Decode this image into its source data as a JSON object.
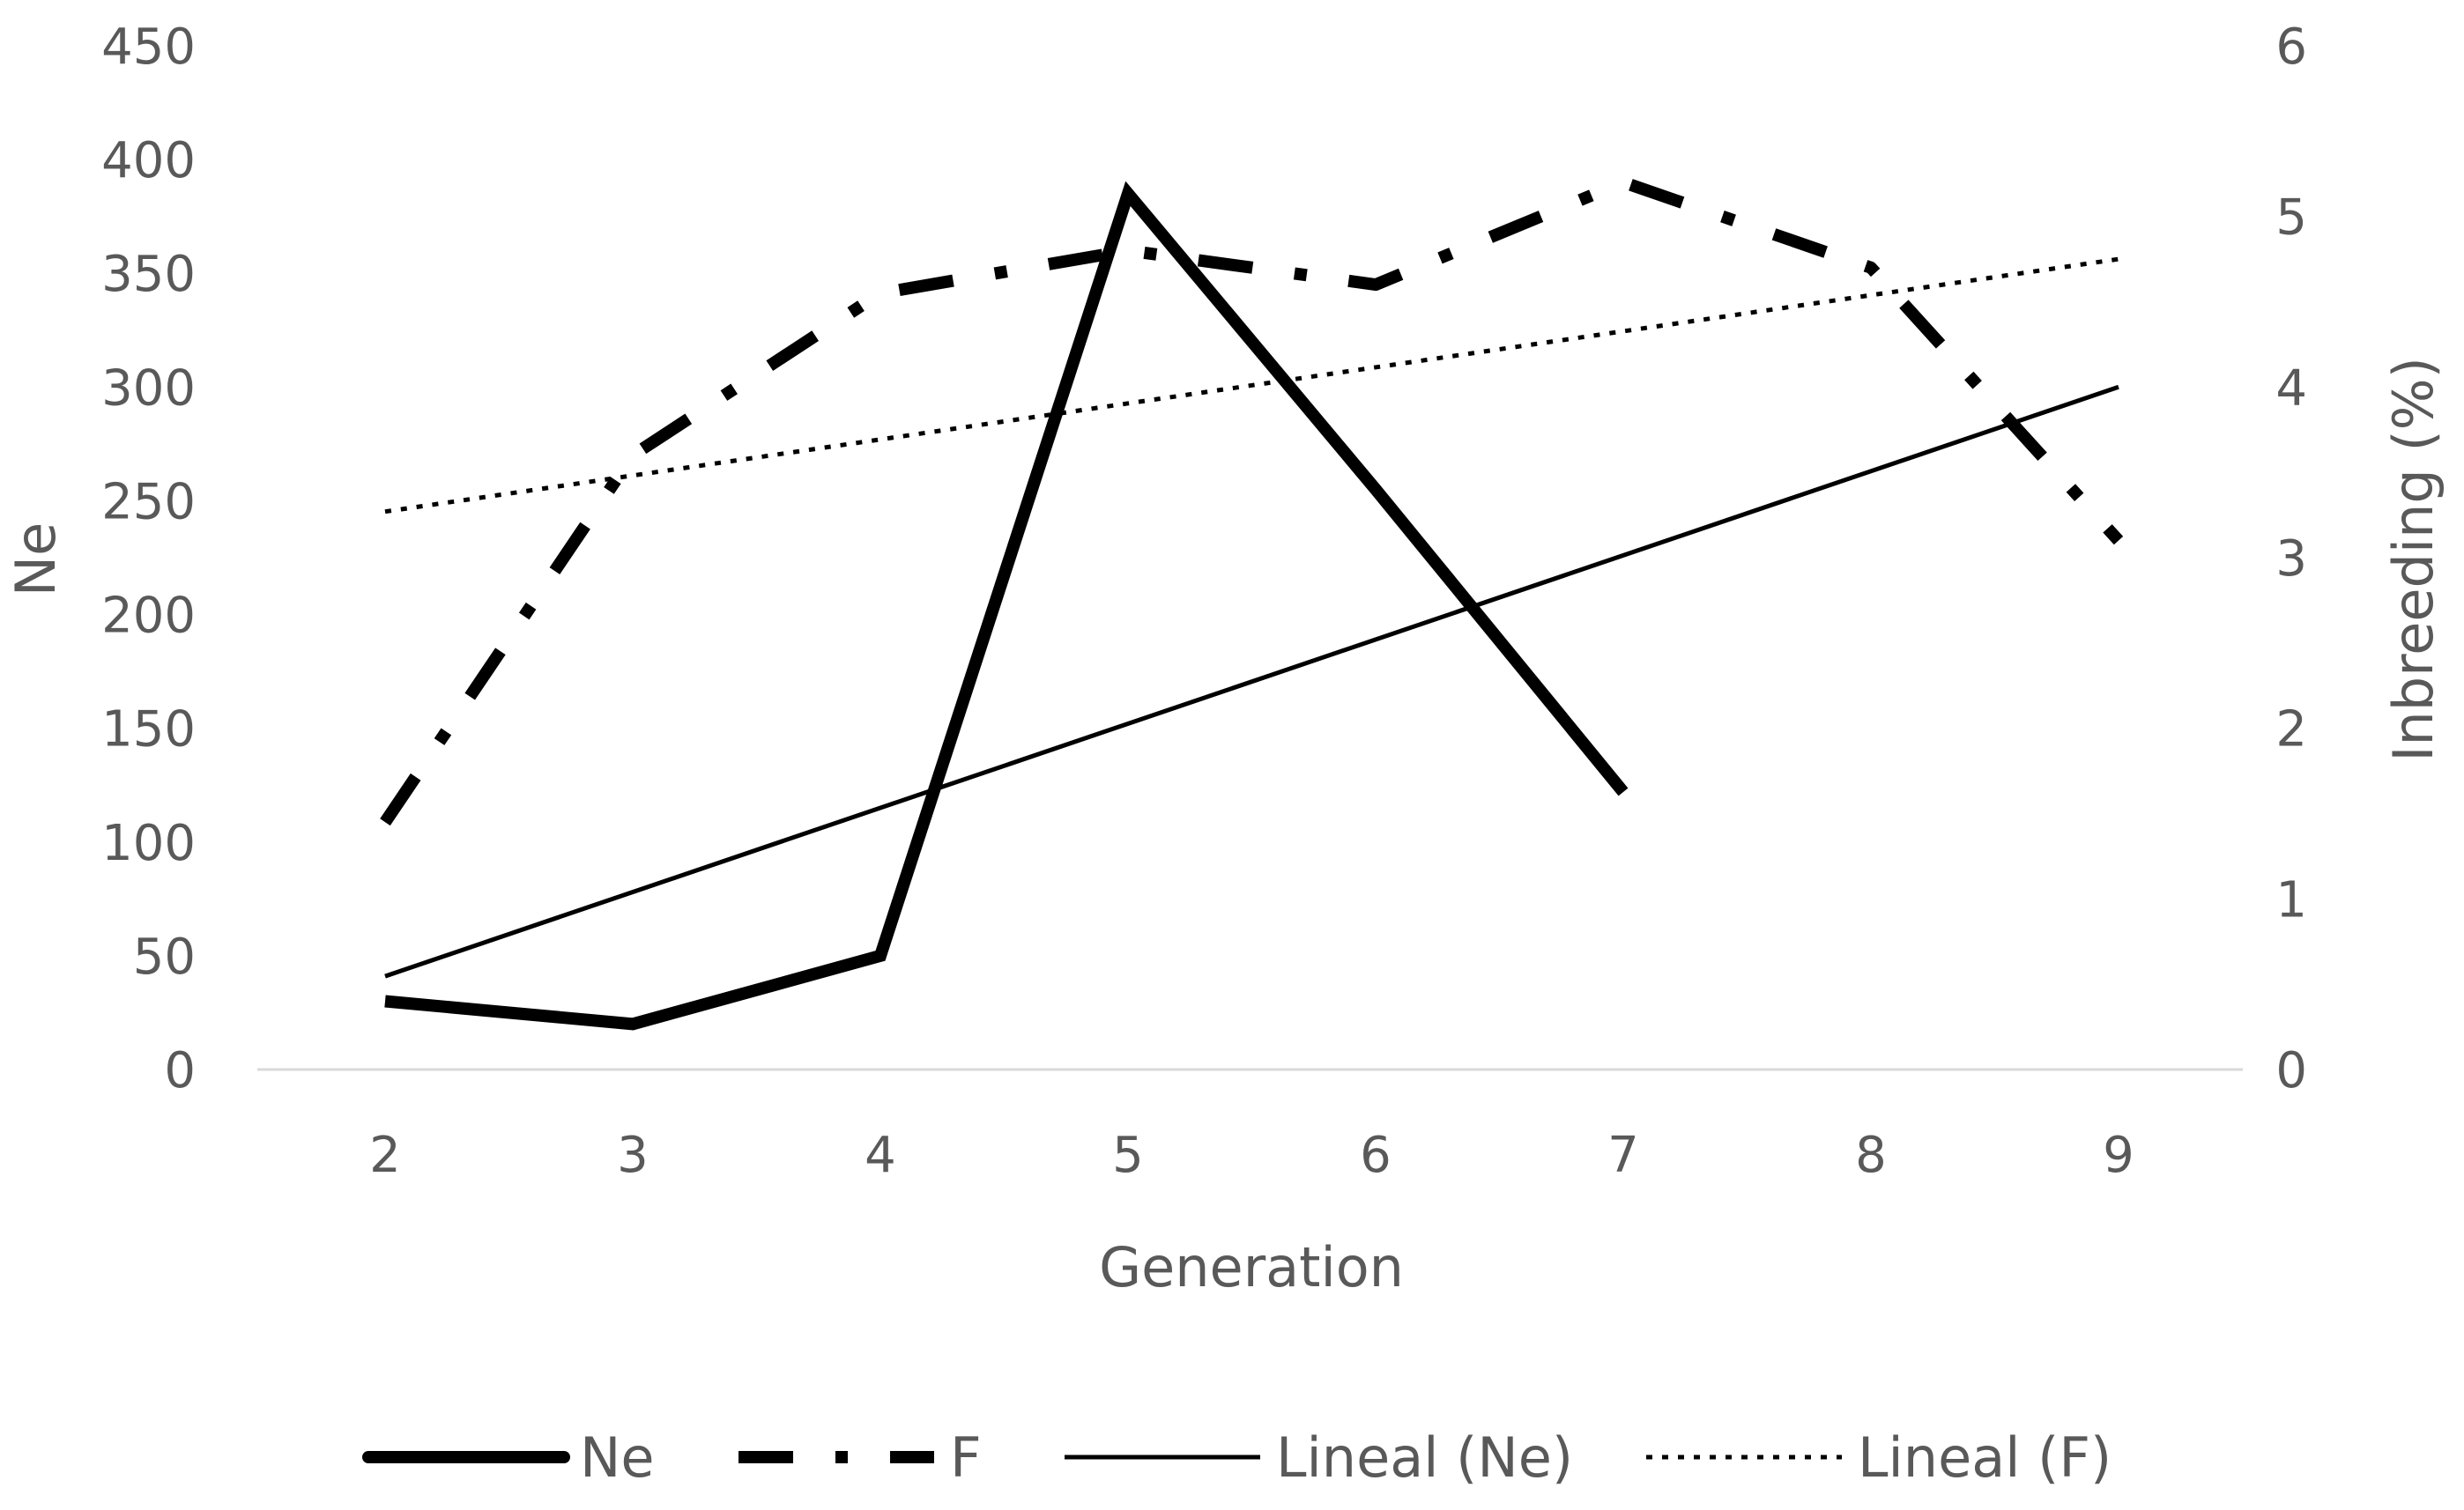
{
  "chart_data": {
    "type": "line",
    "xlabel": "Generation",
    "ylabel": "Ne",
    "y2label": "Inbreeding (%)",
    "categories": [
      2,
      3,
      4,
      5,
      6,
      7,
      8,
      9
    ],
    "ylim": [
      0,
      450
    ],
    "y2lim": [
      0,
      6
    ],
    "yticks": [
      0,
      50,
      100,
      150,
      200,
      250,
      300,
      350,
      400,
      450
    ],
    "y2ticks": [
      0,
      1,
      2,
      3,
      4,
      5,
      6
    ],
    "grid": false,
    "legend_position": "bottom",
    "series": [
      {
        "name": "Ne",
        "axis": "left",
        "style": "solid-thick",
        "x": [
          2,
          3,
          4,
          5,
          6,
          7
        ],
        "values": [
          30,
          20,
          50,
          385,
          255,
          122
        ]
      },
      {
        "name": "F",
        "axis": "right",
        "style": "dash-dot-thick",
        "x": [
          2,
          3,
          4,
          5,
          6,
          7,
          8,
          9
        ],
        "values": [
          1.45,
          3.6,
          4.55,
          4.8,
          4.6,
          5.2,
          4.7,
          3.1
        ]
      },
      {
        "name": "Lineal (Ne)",
        "axis": "left",
        "style": "solid-thin",
        "trendline_of": "Ne",
        "x": [
          2,
          9
        ],
        "values": [
          41,
          300
        ]
      },
      {
        "name": "Lineal (F)",
        "axis": "right",
        "style": "dotted",
        "trendline_of": "F",
        "x": [
          2,
          9
        ],
        "values": [
          3.27,
          4.75
        ]
      }
    ]
  }
}
